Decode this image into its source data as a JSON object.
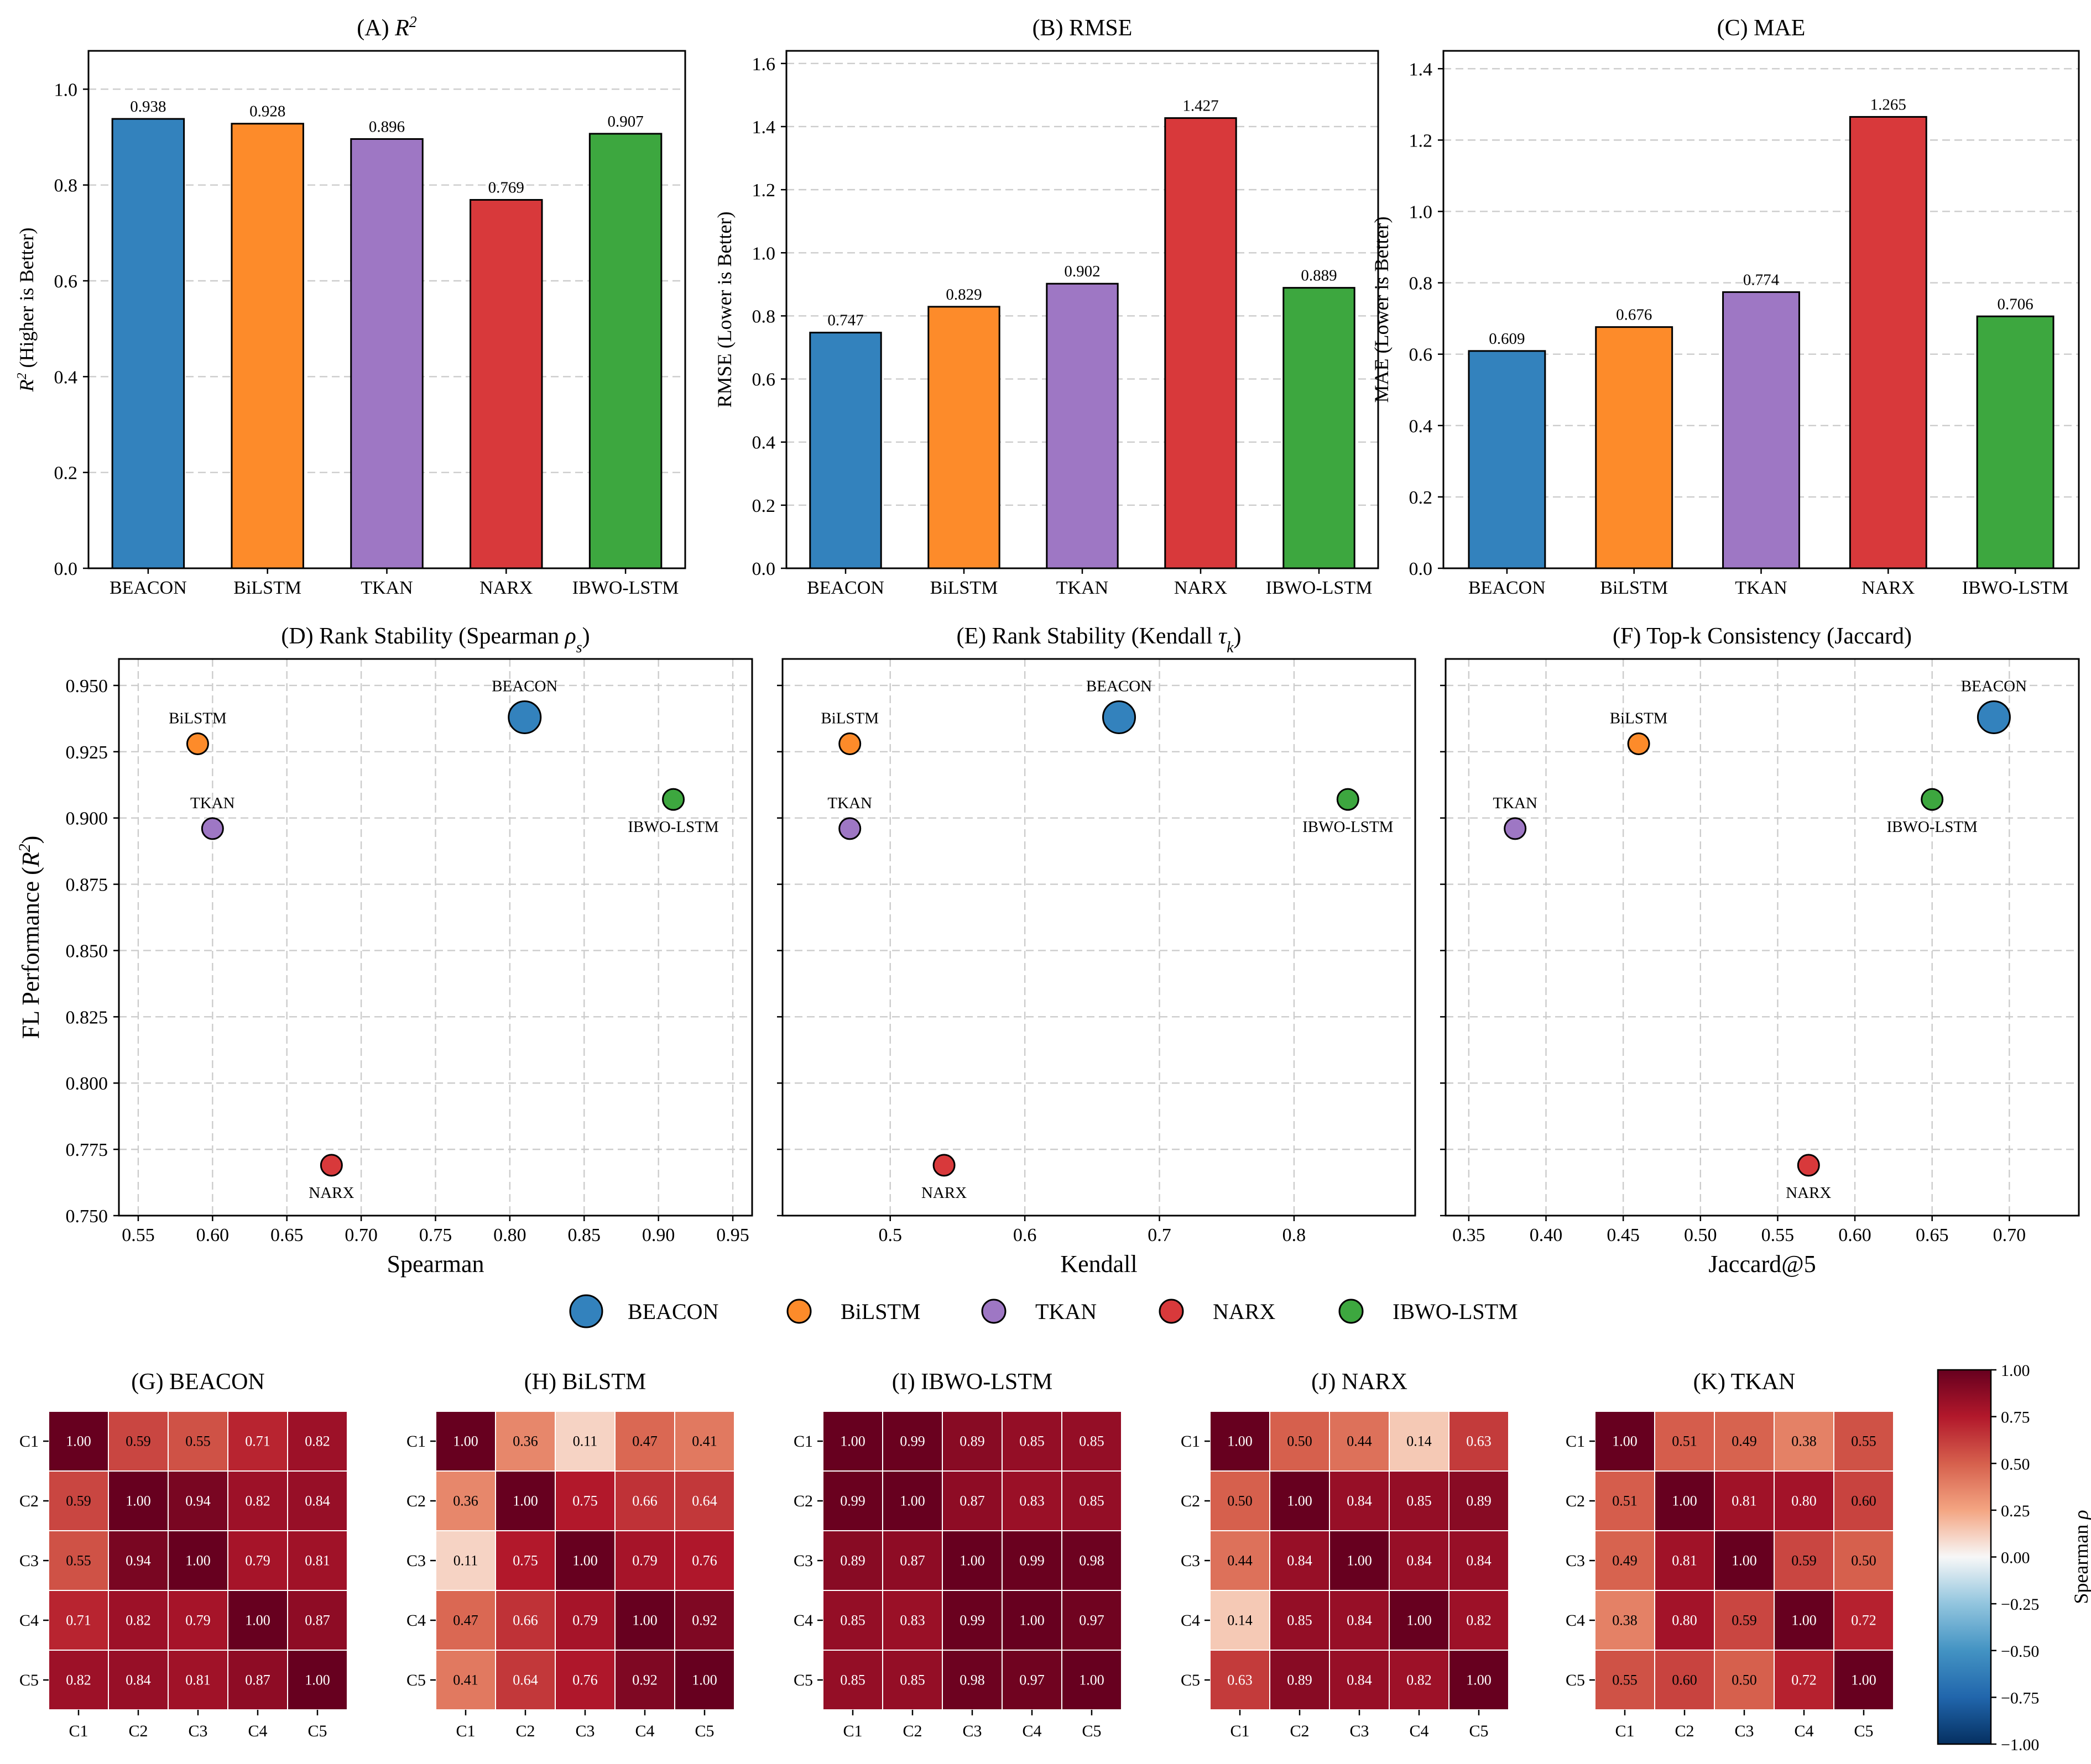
{
  "colors": {
    "BEACON": "#3382bd",
    "BiLSTM": "#fd8b2a",
    "TKAN": "#9e77c4",
    "NARX": "#d8393b",
    "IBWO-LSTM": "#3da73f"
  },
  "chart_data": [
    {
      "id": "A",
      "type": "bar",
      "title_prefix": "(A) ",
      "title_math": "R",
      "title_sup": "2",
      "categories": [
        "BEACON",
        "BiLSTM",
        "TKAN",
        "NARX",
        "IBWO-LSTM"
      ],
      "values": [
        0.938,
        0.928,
        0.896,
        0.769,
        0.907
      ],
      "value_labels": [
        "0.938",
        "0.928",
        "0.896",
        "0.769",
        "0.907"
      ],
      "ylabel_math": "R",
      "ylabel_sup": "2",
      "ylabel_rest": " (Higher is Better)",
      "ylim": [
        0,
        1.08
      ],
      "yticks": [
        0.0,
        0.2,
        0.4,
        0.6,
        0.8,
        1.0
      ],
      "ytick_labels": [
        "0.0",
        "0.2",
        "0.4",
        "0.6",
        "0.8",
        "1.0"
      ]
    },
    {
      "id": "B",
      "type": "bar",
      "title": "(B) RMSE",
      "categories": [
        "BEACON",
        "BiLSTM",
        "TKAN",
        "NARX",
        "IBWO-LSTM"
      ],
      "values": [
        0.747,
        0.829,
        0.902,
        1.427,
        0.889
      ],
      "value_labels": [
        "0.747",
        "0.829",
        "0.902",
        "1.427",
        "0.889"
      ],
      "ylabel": "RMSE (Lower is Better)",
      "ylim": [
        0,
        1.64
      ],
      "yticks": [
        0.0,
        0.2,
        0.4,
        0.6,
        0.8,
        1.0,
        1.2,
        1.4,
        1.6
      ],
      "ytick_labels": [
        "0.0",
        "0.2",
        "0.4",
        "0.6",
        "0.8",
        "1.0",
        "1.2",
        "1.4",
        "1.6"
      ]
    },
    {
      "id": "C",
      "type": "bar",
      "title": "(C) MAE",
      "categories": [
        "BEACON",
        "BiLSTM",
        "TKAN",
        "NARX",
        "IBWO-LSTM"
      ],
      "values": [
        0.609,
        0.676,
        0.774,
        1.265,
        0.706
      ],
      "value_labels": [
        "0.609",
        "0.676",
        "0.774",
        "1.265",
        "0.706"
      ],
      "ylabel": "MAE (Lower is Better)",
      "ylim": [
        0,
        1.45
      ],
      "yticks": [
        0.0,
        0.2,
        0.4,
        0.6,
        0.8,
        1.0,
        1.2,
        1.4
      ],
      "ytick_labels": [
        "0.0",
        "0.2",
        "0.4",
        "0.6",
        "0.8",
        "1.0",
        "1.2",
        "1.4"
      ]
    },
    {
      "id": "D",
      "type": "scatter",
      "title": "(D) Rank Stability (Spearman ",
      "title_sym": "ρ",
      "title_sub": "s",
      "title_end": ")",
      "xlabel": "Spearman",
      "ylabel": "FL Performance (",
      "ylabel_math": "R",
      "ylabel_sup": "2",
      "ylabel_end": ")",
      "xlim": [
        0.537,
        0.963
      ],
      "ylim": [
        0.75,
        0.96
      ],
      "xticks": [
        0.55,
        0.6,
        0.65,
        0.7,
        0.75,
        0.8,
        0.85,
        0.9,
        0.95
      ],
      "xtick_labels": [
        "0.55",
        "0.60",
        "0.65",
        "0.70",
        "0.75",
        "0.80",
        "0.85",
        "0.90",
        "0.95"
      ],
      "yticks": [
        0.75,
        0.775,
        0.8,
        0.825,
        0.85,
        0.875,
        0.9,
        0.925,
        0.95
      ],
      "ytick_labels": [
        "0.750",
        "0.775",
        "0.800",
        "0.825",
        "0.850",
        "0.875",
        "0.900",
        "0.925",
        "0.950"
      ],
      "points": [
        {
          "name": "BEACON",
          "x": 0.81,
          "y": 0.938,
          "label_pos": "above",
          "big": true
        },
        {
          "name": "BiLSTM",
          "x": 0.59,
          "y": 0.928,
          "label_pos": "above",
          "big": false
        },
        {
          "name": "TKAN",
          "x": 0.6,
          "y": 0.896,
          "label_pos": "above",
          "big": false
        },
        {
          "name": "NARX",
          "x": 0.68,
          "y": 0.769,
          "label_pos": "below",
          "big": false
        },
        {
          "name": "IBWO-LSTM",
          "x": 0.91,
          "y": 0.907,
          "label_pos": "below",
          "big": false
        }
      ]
    },
    {
      "id": "E",
      "type": "scatter",
      "title": "(E) Rank Stability (Kendall ",
      "title_sym": "τ",
      "title_sub": "k",
      "title_end": ")",
      "xlabel": "Kendall",
      "xlim": [
        0.42,
        0.89
      ],
      "ylim": [
        0.75,
        0.96
      ],
      "xticks": [
        0.5,
        0.6,
        0.7,
        0.8
      ],
      "xtick_labels": [
        "0.5",
        "0.6",
        "0.7",
        "0.8"
      ],
      "points": [
        {
          "name": "BEACON",
          "x": 0.67,
          "y": 0.938,
          "label_pos": "above",
          "big": true
        },
        {
          "name": "BiLSTM",
          "x": 0.47,
          "y": 0.928,
          "label_pos": "above",
          "big": false
        },
        {
          "name": "TKAN",
          "x": 0.47,
          "y": 0.896,
          "label_pos": "above",
          "big": false
        },
        {
          "name": "NARX",
          "x": 0.54,
          "y": 0.769,
          "label_pos": "below",
          "big": false
        },
        {
          "name": "IBWO-LSTM",
          "x": 0.84,
          "y": 0.907,
          "label_pos": "below",
          "big": false
        }
      ]
    },
    {
      "id": "F",
      "type": "scatter",
      "title": "(F) Top-k Consistency (Jaccard)",
      "xlabel": "Jaccard@5",
      "xlim": [
        0.335,
        0.745
      ],
      "ylim": [
        0.75,
        0.96
      ],
      "xticks": [
        0.35,
        0.4,
        0.45,
        0.5,
        0.55,
        0.6,
        0.65,
        0.7
      ],
      "xtick_labels": [
        "0.35",
        "0.40",
        "0.45",
        "0.50",
        "0.55",
        "0.60",
        "0.65",
        "0.70"
      ],
      "points": [
        {
          "name": "BEACON",
          "x": 0.69,
          "y": 0.938,
          "label_pos": "above",
          "big": true
        },
        {
          "name": "BiLSTM",
          "x": 0.46,
          "y": 0.928,
          "label_pos": "above",
          "big": false
        },
        {
          "name": "TKAN",
          "x": 0.38,
          "y": 0.896,
          "label_pos": "above",
          "big": false
        },
        {
          "name": "NARX",
          "x": 0.57,
          "y": 0.769,
          "label_pos": "below",
          "big": false
        },
        {
          "name": "IBWO-LSTM",
          "x": 0.65,
          "y": 0.907,
          "label_pos": "below",
          "big": false
        }
      ]
    },
    {
      "id": "G-K",
      "type": "heatmap",
      "row_labels": [
        "C1",
        "C2",
        "C3",
        "C4",
        "C5"
      ],
      "col_labels": [
        "C1",
        "C2",
        "C3",
        "C4",
        "C5"
      ],
      "vmin": -1.0,
      "vmax": 1.0,
      "colorbar_label": "Spearman ",
      "colorbar_sym": "ρ",
      "colorbar_ticks": [
        1.0,
        0.75,
        0.5,
        0.25,
        0.0,
        -0.25,
        -0.5,
        -0.75,
        -1.0
      ],
      "colorbar_tick_labels": [
        "1.00",
        "0.75",
        "0.50",
        "0.25",
        "0.00",
        "−0.25",
        "−0.50",
        "−0.75",
        "−1.00"
      ],
      "panels": [
        {
          "title": "(G) BEACON",
          "matrix": [
            [
              "1.00",
              "0.59",
              "0.55",
              "0.71",
              "0.82"
            ],
            [
              "0.59",
              "1.00",
              "0.94",
              "0.82",
              "0.84"
            ],
            [
              "0.55",
              "0.94",
              "1.00",
              "0.79",
              "0.81"
            ],
            [
              "0.71",
              "0.82",
              "0.79",
              "1.00",
              "0.87"
            ],
            [
              "0.82",
              "0.84",
              "0.81",
              "0.87",
              "1.00"
            ]
          ]
        },
        {
          "title": "(H) BiLSTM",
          "matrix": [
            [
              "1.00",
              "0.36",
              "0.11",
              "0.47",
              "0.41"
            ],
            [
              "0.36",
              "1.00",
              "0.75",
              "0.66",
              "0.64"
            ],
            [
              "0.11",
              "0.75",
              "1.00",
              "0.79",
              "0.76"
            ],
            [
              "0.47",
              "0.66",
              "0.79",
              "1.00",
              "0.92"
            ],
            [
              "0.41",
              "0.64",
              "0.76",
              "0.92",
              "1.00"
            ]
          ]
        },
        {
          "title": "(I) IBWO-LSTM",
          "matrix": [
            [
              "1.00",
              "0.99",
              "0.89",
              "0.85",
              "0.85"
            ],
            [
              "0.99",
              "1.00",
              "0.87",
              "0.83",
              "0.85"
            ],
            [
              "0.89",
              "0.87",
              "1.00",
              "0.99",
              "0.98"
            ],
            [
              "0.85",
              "0.83",
              "0.99",
              "1.00",
              "0.97"
            ],
            [
              "0.85",
              "0.85",
              "0.98",
              "0.97",
              "1.00"
            ]
          ]
        },
        {
          "title": "(J) NARX",
          "matrix": [
            [
              "1.00",
              "0.50",
              "0.44",
              "0.14",
              "0.63"
            ],
            [
              "0.50",
              "1.00",
              "0.84",
              "0.85",
              "0.89"
            ],
            [
              "0.44",
              "0.84",
              "1.00",
              "0.84",
              "0.84"
            ],
            [
              "0.14",
              "0.85",
              "0.84",
              "1.00",
              "0.82"
            ],
            [
              "0.63",
              "0.89",
              "0.84",
              "0.82",
              "1.00"
            ]
          ]
        },
        {
          "title": "(K) TKAN",
          "matrix": [
            [
              "1.00",
              "0.51",
              "0.49",
              "0.38",
              "0.55"
            ],
            [
              "0.51",
              "1.00",
              "0.81",
              "0.80",
              "0.60"
            ],
            [
              "0.49",
              "0.81",
              "1.00",
              "0.59",
              "0.50"
            ],
            [
              "0.38",
              "0.80",
              "0.59",
              "1.00",
              "0.72"
            ],
            [
              "0.55",
              "0.60",
              "0.50",
              "0.72",
              "1.00"
            ]
          ]
        }
      ]
    }
  ],
  "legend": [
    "BEACON",
    "BiLSTM",
    "TKAN",
    "NARX",
    "IBWO-LSTM"
  ]
}
